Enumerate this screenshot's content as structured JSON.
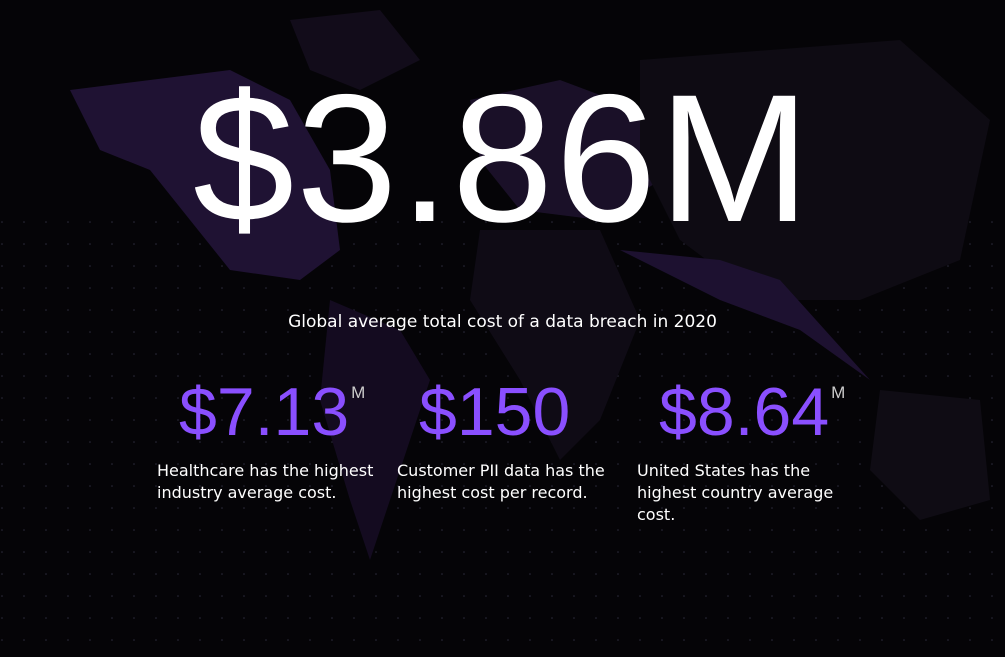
{
  "headline": {
    "value": "$3.86M",
    "caption": "Global average total cost of a data breach in 2020"
  },
  "stats": [
    {
      "value": "$7.13",
      "unit": "M",
      "text": "Healthcare has the highest industry average cost."
    },
    {
      "value": "$150",
      "unit": null,
      "text": "Customer PII data has the highest cost per record."
    },
    {
      "value": "$8.64",
      "unit": "M",
      "text": "United States has the highest country average cost."
    }
  ]
}
